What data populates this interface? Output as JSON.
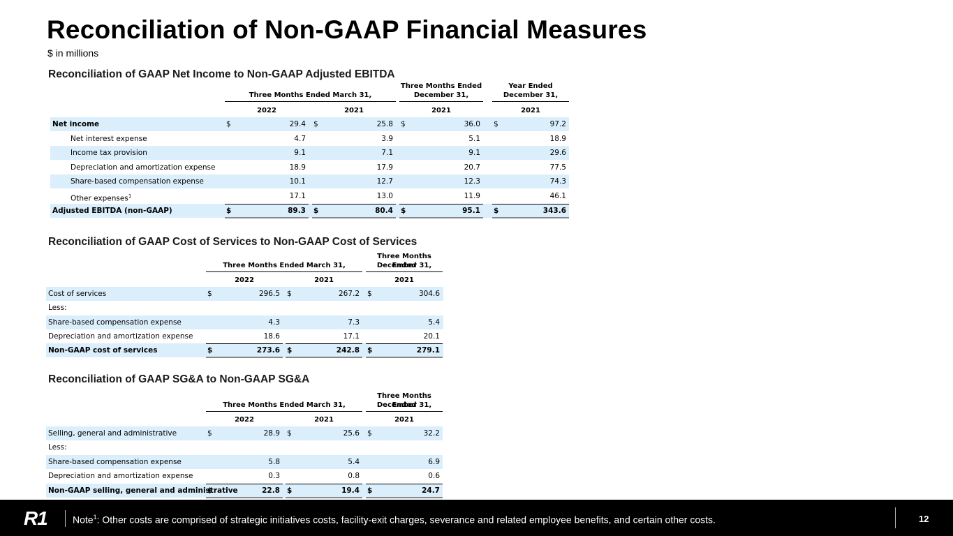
{
  "header": {
    "title": "Reconciliation of Non-GAAP Financial Measures",
    "subtitle": "$ in millions"
  },
  "tables": [
    {
      "heading": "Reconciliation of GAAP Net Income to Non-GAAP Adjusted EBITDA",
      "column_groups": [
        [
          "Three Months Ended March 31,"
        ],
        [
          "Three Months Ended",
          "December 31,"
        ],
        [
          "Year Ended",
          "December 31,"
        ]
      ],
      "years": [
        "2022",
        "2021",
        "2021",
        "2021"
      ],
      "rows": [
        {
          "label": "Net income",
          "currency": "$",
          "values": [
            "29.4",
            "25.8",
            "36.0",
            "97.2"
          ]
        },
        {
          "label": "Net interest expense",
          "values": [
            "4.7",
            "3.9",
            "5.1",
            "18.9"
          ]
        },
        {
          "label": "Income tax provision",
          "values": [
            "9.1",
            "7.1",
            "9.1",
            "29.6"
          ]
        },
        {
          "label": "Depreciation and amortization expense",
          "values": [
            "18.9",
            "17.9",
            "20.7",
            "77.5"
          ]
        },
        {
          "label": "Share-based compensation expense",
          "values": [
            "10.1",
            "12.7",
            "12.3",
            "74.3"
          ]
        },
        {
          "label": "Other expenses",
          "footnote": "1",
          "values": [
            "17.1",
            "13.0",
            "11.9",
            "46.1"
          ]
        },
        {
          "label": "Adjusted EBITDA (non-GAAP)",
          "currency": "$",
          "values": [
            "89.3",
            "80.4",
            "95.1",
            "343.6"
          ]
        }
      ]
    },
    {
      "heading": "Reconciliation of GAAP Cost of Services to Non-GAAP Cost of Services",
      "column_groups": [
        [
          "Three Months Ended March 31,"
        ],
        [
          "Three Months Ended",
          "December 31,"
        ]
      ],
      "years": [
        "2022",
        "2021",
        "2021"
      ],
      "rows": [
        {
          "label": "Cost of services",
          "currency": "$",
          "values": [
            "296.5",
            "267.2",
            "304.6"
          ]
        },
        {
          "label": "Less:"
        },
        {
          "label": "Share-based compensation expense",
          "values": [
            "4.3",
            "7.3",
            "5.4"
          ]
        },
        {
          "label": "Depreciation and amortization expense",
          "values": [
            "18.6",
            "17.1",
            "20.1"
          ]
        },
        {
          "label": "Non-GAAP cost of services",
          "currency": "$",
          "values": [
            "273.6",
            "242.8",
            "279.1"
          ]
        }
      ]
    },
    {
      "heading": "Reconciliation of GAAP SG&A to Non-GAAP SG&A",
      "column_groups": [
        [
          "Three Months Ended March 31,"
        ],
        [
          "Three Months Ended",
          "December 31,"
        ]
      ],
      "years": [
        "2022",
        "2021",
        "2021"
      ],
      "rows": [
        {
          "label": "Selling, general and administrative",
          "currency": "$",
          "values": [
            "28.9",
            "25.6",
            "32.2"
          ]
        },
        {
          "label": "Less:"
        },
        {
          "label": "Share-based compensation expense",
          "values": [
            "5.8",
            "5.4",
            "6.9"
          ]
        },
        {
          "label": "Depreciation and amortization expense",
          "values": [
            "0.3",
            "0.8",
            "0.6"
          ]
        },
        {
          "label": "Non-GAAP selling, general and administrative",
          "currency": "$",
          "values": [
            "22.8",
            "19.4",
            "24.7"
          ]
        }
      ]
    }
  ],
  "footer": {
    "logo": "R1",
    "note_label": "Note",
    "note_sup": "1",
    "note_text": ": Other costs are comprised of strategic initiatives costs, facility-exit charges, severance and related employee benefits, and certain other costs.",
    "page": "12"
  }
}
